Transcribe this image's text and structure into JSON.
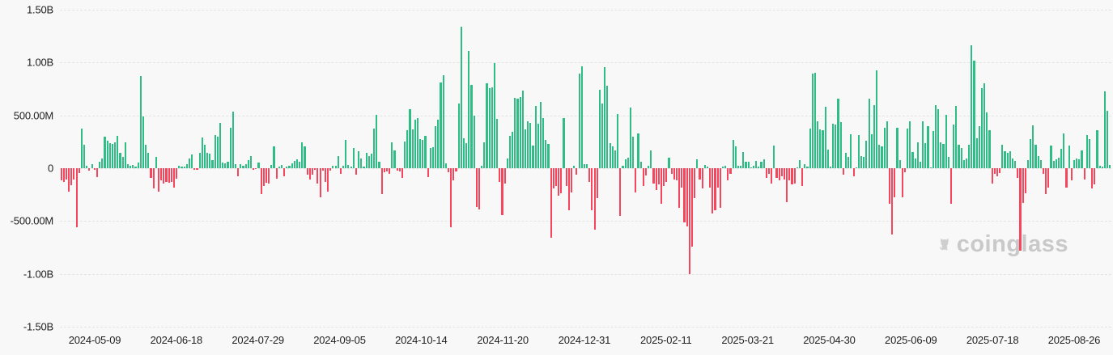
{
  "watermark": {
    "text": "coinglass",
    "icon": "coinglass-bear-icon"
  },
  "chart_data": {
    "type": "bar",
    "title": "",
    "xlabel": "",
    "ylabel": "",
    "unit": "USD",
    "value_scale": "millions",
    "ylim": [
      -1500,
      1500
    ],
    "grid": true,
    "grid_style": "dashed",
    "legend_position": "none",
    "colors": {
      "positive": "#2dbd85",
      "negative": "#f5465d"
    },
    "y_ticks": [
      {
        "label": "1.50B",
        "value": 1500
      },
      {
        "label": "1.00B",
        "value": 1000
      },
      {
        "label": "500.00M",
        "value": 500
      },
      {
        "label": "0",
        "value": 0
      },
      {
        "label": "-500.00M",
        "value": -500
      },
      {
        "label": "-1.00B",
        "value": -1000
      },
      {
        "label": "-1.50B",
        "value": -1500
      }
    ],
    "x_tick_labels": [
      "2024-05-09",
      "2024-06-18",
      "2024-07-29",
      "2024-09-05",
      "2024-10-14",
      "2024-11-20",
      "2024-12-31",
      "2025-02-11",
      "2025-03-21",
      "2025-04-30",
      "2025-06-09",
      "2025-07-18",
      "2025-08-26"
    ],
    "values_millions": [
      -118,
      -131,
      -105,
      -221,
      -164,
      -105,
      -560,
      -46,
      378,
      221,
      26,
      -21,
      36,
      -15,
      -87,
      65,
      91,
      300,
      260,
      234,
      227,
      242,
      305,
      148,
      104,
      247,
      39,
      26,
      34,
      18,
      52,
      873,
      490,
      221,
      143,
      -91,
      -195,
      104,
      -221,
      -117,
      -143,
      -130,
      -138,
      -130,
      -182,
      -100,
      26,
      18,
      13,
      39,
      91,
      130,
      -13,
      -18,
      143,
      294,
      221,
      148,
      138,
      78,
      312,
      300,
      430,
      52,
      44,
      65,
      383,
      539,
      39,
      -78,
      39,
      26,
      39,
      78,
      117,
      -18,
      -8,
      52,
      -242,
      -169,
      -138,
      -143,
      34,
      208,
      -96,
      13,
      34,
      -78,
      18,
      26,
      44,
      70,
      86,
      65,
      247,
      208,
      -65,
      -104,
      -65,
      -13,
      -143,
      -273,
      -26,
      -130,
      -221,
      -26,
      26,
      26,
      112,
      -52,
      26,
      268,
      34,
      18,
      195,
      -60,
      164,
      91,
      18,
      143,
      112,
      138,
      372,
      502,
      65,
      -247,
      -39,
      -34,
      -52,
      242,
      169,
      -26,
      -34,
      -91,
      253,
      357,
      560,
      365,
      461,
      477,
      279,
      268,
      305,
      -86,
      191,
      196,
      395,
      457,
      814,
      883,
      43,
      -39,
      -560,
      -112,
      -30,
      610,
      1343,
      286,
      240,
      1108,
      789,
      500,
      -370,
      -390,
      20,
      247,
      807,
      756,
      765,
      993,
      465,
      -130,
      -443,
      -143,
      94,
      306,
      344,
      669,
      661,
      674,
      738,
      365,
      446,
      426,
      217,
      587,
      421,
      625,
      477,
      268,
      230,
      -656,
      -190,
      -169,
      -259,
      -241,
      472,
      -169,
      -395,
      -233,
      20,
      -60,
      896,
      965,
      41,
      36,
      -131,
      -400,
      -579,
      -285,
      743,
      610,
      960,
      781,
      240,
      208,
      169,
      515,
      -455,
      23,
      87,
      100,
      577,
      297,
      -233,
      331,
      62,
      -169,
      -67,
      25,
      169,
      -144,
      -208,
      -156,
      -336,
      -169,
      -131,
      100,
      -54,
      -105,
      -118,
      -374,
      -182,
      -515,
      -554,
      -1003,
      -746,
      -285,
      87,
      -105,
      -195,
      31,
      15,
      -182,
      -426,
      -400,
      -182,
      -374,
      15,
      23,
      -118,
      -54,
      267,
      203,
      23,
      23,
      151,
      62,
      62,
      5,
      23,
      67,
      15,
      62,
      82,
      -92,
      -54,
      -144,
      215,
      -92,
      -118,
      -79,
      -105,
      -323,
      -117,
      -156,
      -143,
      8,
      78,
      -169,
      39,
      12,
      378,
      898,
      900,
      443,
      370,
      357,
      584,
      174,
      13,
      424,
      417,
      661,
      435,
      -65,
      143,
      104,
      325,
      -78,
      8,
      312,
      112,
      104,
      260,
      658,
      325,
      597,
      924,
      221,
      208,
      383,
      443,
      -338,
      -625,
      -273,
      383,
      78,
      -273,
      -39,
      378,
      443,
      156,
      91,
      247,
      65,
      443,
      240,
      398,
      10,
      351,
      599,
      560,
      247,
      227,
      503,
      104,
      -338,
      417,
      590,
      221,
      195,
      78,
      91,
      221,
      1160,
      1015,
      286,
      400,
      760,
      807,
      530,
      357,
      -143,
      -52,
      -78,
      -44,
      221,
      164,
      148,
      164,
      91,
      70,
      -91,
      -781,
      -326,
      -234,
      78,
      279,
      404,
      221,
      112,
      78,
      -52,
      -242,
      -182,
      216,
      70,
      86,
      96,
      182,
      331,
      -180,
      215,
      -118,
      74,
      92,
      82,
      169,
      -105,
      313,
      279,
      -195,
      -156,
      356,
      23,
      15,
      728,
      544,
      31
    ]
  }
}
